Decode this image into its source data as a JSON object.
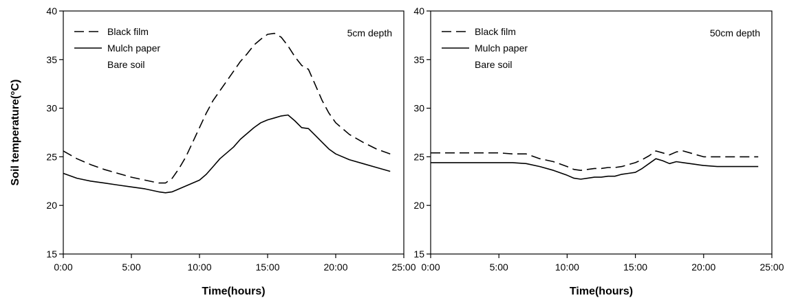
{
  "chart_data": [
    {
      "type": "line",
      "annotation": "5cm depth",
      "xlabel": "Time(hours)",
      "ylabel": "Soil temperature(°C)",
      "xlim": [
        0,
        25
      ],
      "ylim": [
        15,
        40
      ],
      "xticks": [
        0,
        5,
        10,
        15,
        20,
        25
      ],
      "xtick_labels": [
        "0:00",
        "5:00",
        "10:00",
        "15:00",
        "20:00",
        "25:00"
      ],
      "yticks": [
        15,
        20,
        25,
        30,
        35,
        40
      ],
      "ytick_labels": [
        "15",
        "20",
        "25",
        "30",
        "35",
        "40"
      ],
      "grid": false,
      "legend_position": "top-left",
      "series": [
        {
          "name": "Black film",
          "style": "dashed",
          "x": [
            0,
            1,
            2,
            3,
            4,
            5,
            6,
            7,
            7.5,
            8,
            8.5,
            9,
            9.5,
            10,
            10.5,
            11,
            11.5,
            12,
            12.5,
            13,
            13.5,
            14,
            14.5,
            15,
            15.5,
            16,
            16.5,
            17,
            17.5,
            18,
            18.5,
            19,
            19.5,
            20,
            21,
            22,
            23,
            24
          ],
          "y": [
            25.6,
            24.8,
            24.2,
            23.7,
            23.3,
            22.9,
            22.6,
            22.3,
            22.3,
            22.8,
            23.8,
            25.0,
            26.5,
            28.0,
            29.5,
            30.8,
            31.8,
            32.8,
            33.8,
            34.8,
            35.6,
            36.5,
            37.1,
            37.6,
            37.7,
            37.3,
            36.4,
            35.3,
            34.4,
            34.0,
            32.4,
            30.8,
            29.5,
            28.5,
            27.3,
            26.5,
            25.8,
            25.3
          ]
        },
        {
          "name": "Mulch paper",
          "style": "solid",
          "x": [
            0,
            1,
            2,
            3,
            4,
            5,
            6,
            7,
            7.5,
            8,
            8.5,
            9,
            9.5,
            10,
            10.5,
            11,
            11.5,
            12,
            12.5,
            13,
            13.5,
            14,
            14.5,
            15,
            15.5,
            16,
            16.5,
            17,
            17.5,
            18,
            18.5,
            19,
            19.5,
            20,
            21,
            22,
            23,
            24
          ],
          "y": [
            23.3,
            22.8,
            22.5,
            22.3,
            22.1,
            21.9,
            21.7,
            21.4,
            21.3,
            21.4,
            21.7,
            22.0,
            22.3,
            22.6,
            23.2,
            24.0,
            24.8,
            25.4,
            26.0,
            26.8,
            27.4,
            28.0,
            28.5,
            28.8,
            29.0,
            29.2,
            29.3,
            28.7,
            28.0,
            27.9,
            27.2,
            26.5,
            25.8,
            25.3,
            24.7,
            24.3,
            23.9,
            23.5
          ]
        },
        {
          "name": "Bare soil",
          "style": "none",
          "x": [],
          "y": []
        }
      ]
    },
    {
      "type": "line",
      "annotation": "50cm depth",
      "xlabel": "Time(hours)",
      "ylabel": "",
      "xlim": [
        0,
        25
      ],
      "ylim": [
        15,
        40
      ],
      "xticks": [
        0,
        5,
        10,
        15,
        20,
        25
      ],
      "xtick_labels": [
        "0:00",
        "5:00",
        "10:00",
        "15:00",
        "20:00",
        "25:00"
      ],
      "yticks": [
        15,
        20,
        25,
        30,
        35,
        40
      ],
      "ytick_labels": [
        "15",
        "20",
        "25",
        "30",
        "35",
        "40"
      ],
      "grid": false,
      "legend_position": "top-left",
      "series": [
        {
          "name": "Black film",
          "style": "dashed",
          "x": [
            0,
            1,
            2,
            3,
            4,
            5,
            6,
            7,
            8,
            9,
            10,
            10.5,
            11,
            11.5,
            12,
            12.5,
            13,
            13.5,
            14,
            14.5,
            15,
            15.5,
            16,
            16.5,
            17,
            17.5,
            18,
            18.5,
            19,
            19.5,
            20,
            21,
            22,
            23,
            24
          ],
          "y": [
            25.4,
            25.4,
            25.4,
            25.4,
            25.4,
            25.4,
            25.3,
            25.3,
            24.8,
            24.5,
            24.0,
            23.7,
            23.6,
            23.7,
            23.8,
            23.8,
            23.9,
            23.9,
            24.0,
            24.2,
            24.4,
            24.7,
            25.1,
            25.6,
            25.4,
            25.2,
            25.5,
            25.6,
            25.4,
            25.2,
            25.0,
            25.0,
            25.0,
            25.0,
            25.0
          ]
        },
        {
          "name": "Mulch paper",
          "style": "solid",
          "x": [
            0,
            1,
            2,
            3,
            4,
            5,
            6,
            7,
            8,
            9,
            10,
            10.5,
            11,
            11.5,
            12,
            12.5,
            13,
            13.5,
            14,
            14.5,
            15,
            15.5,
            16,
            16.5,
            17,
            17.5,
            18,
            18.5,
            19,
            19.5,
            20,
            21,
            22,
            23,
            24
          ],
          "y": [
            24.4,
            24.4,
            24.4,
            24.4,
            24.4,
            24.4,
            24.4,
            24.3,
            24.0,
            23.6,
            23.1,
            22.8,
            22.7,
            22.8,
            22.9,
            22.9,
            23.0,
            23.0,
            23.2,
            23.3,
            23.4,
            23.8,
            24.3,
            24.8,
            24.6,
            24.3,
            24.5,
            24.4,
            24.3,
            24.2,
            24.1,
            24.0,
            24.0,
            24.0,
            24.0
          ]
        },
        {
          "name": "Bare soil",
          "style": "none",
          "x": [],
          "y": []
        }
      ]
    }
  ]
}
